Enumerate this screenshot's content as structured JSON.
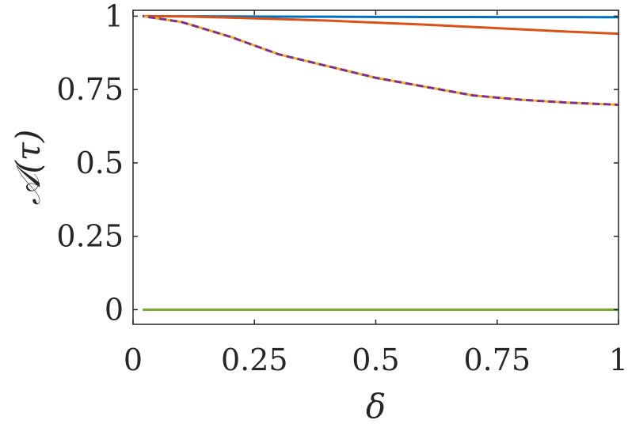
{
  "chart_data": {
    "type": "line",
    "title": "",
    "xlabel": "δ",
    "ylabel": "𝒜(τ)",
    "xlim": [
      0,
      1
    ],
    "ylim": [
      -0.05,
      1.02
    ],
    "xticks": [
      0,
      0.25,
      0.5,
      0.75,
      1
    ],
    "xtick_labels": [
      "0",
      "0.25",
      "0.5",
      "0.75",
      "1"
    ],
    "yticks": [
      0,
      0.25,
      0.5,
      0.75,
      1
    ],
    "ytick_labels": [
      "0",
      "0.25",
      "0.5",
      "0.75",
      "1"
    ],
    "grid": false,
    "series": [
      {
        "color": "#0072bd",
        "style": "solid",
        "x": [
          0.02,
          0.1,
          0.2,
          0.3,
          0.4,
          0.5,
          0.6,
          0.7,
          0.8,
          0.9,
          1.0
        ],
        "y": [
          1.0,
          0.9995,
          0.999,
          0.9985,
          0.998,
          0.9975,
          0.9972,
          0.997,
          0.9968,
          0.9966,
          0.9965
        ]
      },
      {
        "color": "#d95319",
        "style": "solid",
        "x": [
          0.02,
          0.1,
          0.2,
          0.3,
          0.4,
          0.5,
          0.6,
          0.7,
          0.8,
          0.9,
          1.0
        ],
        "y": [
          1.0,
          0.999,
          0.995,
          0.99,
          0.985,
          0.978,
          0.971,
          0.963,
          0.955,
          0.947,
          0.94
        ]
      },
      {
        "color": "#edb120",
        "style": "dashed",
        "x": [
          0.02,
          0.1,
          0.2,
          0.3,
          0.4,
          0.5,
          0.6,
          0.7,
          0.8,
          0.9,
          1.0
        ],
        "y": [
          1.0,
          0.98,
          0.93,
          0.87,
          0.83,
          0.79,
          0.76,
          0.73,
          0.715,
          0.705,
          0.698
        ]
      },
      {
        "color": "#7e2f8e",
        "style": "dashed",
        "x": [
          0.02,
          0.1,
          0.2,
          0.3,
          0.4,
          0.5,
          0.6,
          0.7,
          0.8,
          0.9,
          1.0
        ],
        "y": [
          1.0,
          0.98,
          0.93,
          0.87,
          0.83,
          0.79,
          0.76,
          0.73,
          0.715,
          0.705,
          0.698
        ]
      },
      {
        "color": "#77ac30",
        "style": "solid",
        "x": [
          0.02,
          1.0
        ],
        "y": [
          0.0,
          0.0
        ]
      }
    ]
  }
}
